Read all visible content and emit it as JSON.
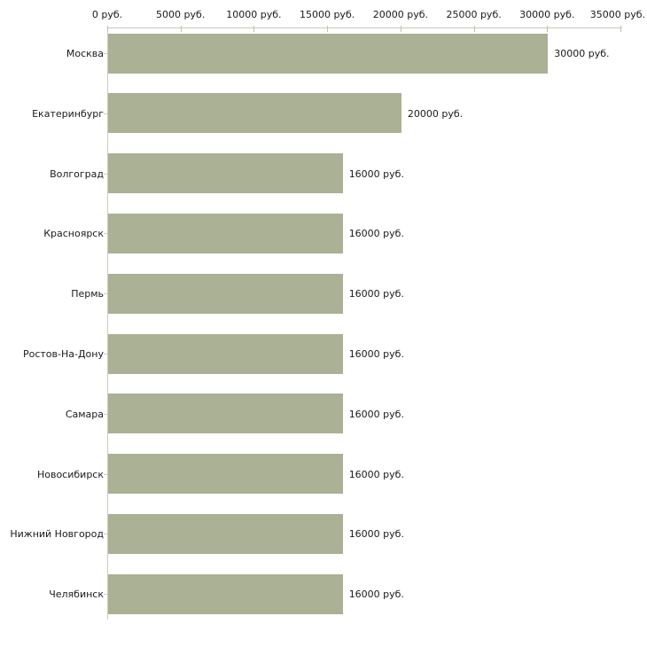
{
  "chart_data": {
    "type": "bar",
    "orientation": "horizontal",
    "title": "",
    "xlabel": "",
    "ylabel": "",
    "unit": "руб.",
    "xlim": [
      0,
      35000
    ],
    "grid": false,
    "legend": false,
    "x_ticks": [
      0,
      5000,
      10000,
      15000,
      20000,
      25000,
      30000,
      35000
    ],
    "x_tick_labels": [
      "0 руб.",
      "5000 руб.",
      "10000 руб.",
      "15000 руб.",
      "20000 руб.",
      "25000 руб.",
      "30000 руб.",
      "35000 руб."
    ],
    "categories": [
      "Москва",
      "Екатеринбург",
      "Волгоград",
      "Красноярск",
      "Пермь",
      "Ростов-На-Дону",
      "Самара",
      "Новосибирск",
      "Нижний Новгород",
      "Челябинск"
    ],
    "values": [
      30000,
      20000,
      16000,
      16000,
      16000,
      16000,
      16000,
      16000,
      16000,
      16000
    ],
    "value_labels": [
      "30000 руб.",
      "20000 руб.",
      "16000 руб.",
      "16000 руб.",
      "16000 руб.",
      "16000 руб.",
      "16000 руб.",
      "16000 руб.",
      "16000 руб.",
      "16000 руб."
    ],
    "bar_color": "#aab194",
    "axis_color": "#c6c7bb",
    "tick_color": "#c2c3a6",
    "text_color": "#1a1a1a"
  }
}
